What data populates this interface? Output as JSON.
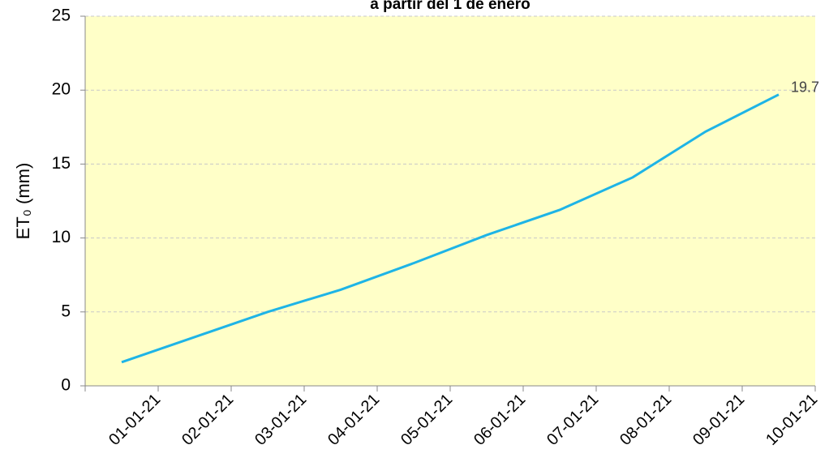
{
  "chart_data": {
    "type": "line",
    "title": "a partir del 1 de enero",
    "y_label": "ET₀ (mm)",
    "categories": [
      "01-01-21",
      "02-01-21",
      "03-01-21",
      "04-01-21",
      "05-01-21",
      "06-01-21",
      "07-01-21",
      "08-01-21",
      "09-01-21",
      "10-01-21"
    ],
    "series": [
      {
        "name": "ET0",
        "color": "#1eb4e6",
        "values": [
          1.6,
          3.3,
          5.0,
          6.5,
          8.3,
          10.2,
          11.9,
          14.1,
          17.2,
          19.7
        ]
      }
    ],
    "ylim": [
      0,
      25
    ],
    "yticks": [
      0,
      5,
      10,
      15,
      20,
      25
    ],
    "grid": true,
    "background": "#ffffc8"
  }
}
